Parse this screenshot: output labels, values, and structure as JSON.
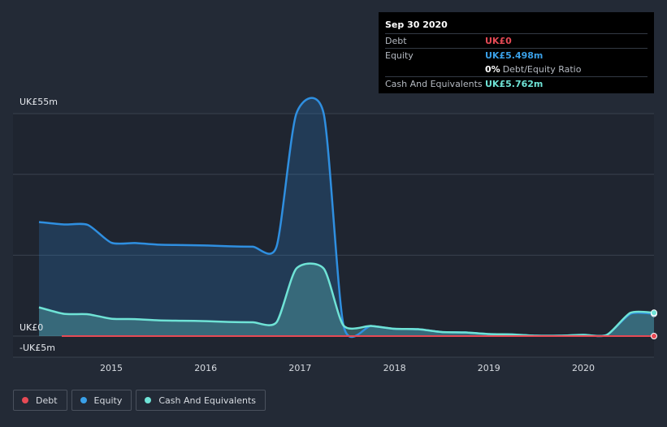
{
  "chart_data": {
    "type": "area",
    "y_axis_labels": [
      "UK£55m",
      "UK£0",
      "-UK£5m"
    ],
    "ylim": [
      -5,
      55
    ],
    "x_ticks": [
      {
        "label": "2015",
        "value": 2015
      },
      {
        "label": "2016",
        "value": 2016
      },
      {
        "label": "2017",
        "value": 2017
      },
      {
        "label": "2018",
        "value": 2018
      },
      {
        "label": "2019",
        "value": 2019
      },
      {
        "label": "2020",
        "value": 2020
      }
    ],
    "xlim": [
      2014.0,
      2020.75
    ],
    "grid": true,
    "series": [
      {
        "name": "Debt",
        "color": "#e64a55",
        "points": [
          [
            2014.25,
            0
          ],
          [
            2020.75,
            0
          ]
        ]
      },
      {
        "name": "Equity",
        "color": "#2f8fe0",
        "points": [
          [
            2014.25,
            28.2
          ],
          [
            2014.5,
            27.6
          ],
          [
            2014.75,
            27.5
          ],
          [
            2015.0,
            23.1
          ],
          [
            2015.25,
            23.0
          ],
          [
            2015.5,
            22.6
          ],
          [
            2015.75,
            22.5
          ],
          [
            2016.0,
            22.4
          ],
          [
            2016.25,
            22.2
          ],
          [
            2016.5,
            22.1
          ],
          [
            2016.75,
            22.1
          ],
          [
            2016.96,
            55
          ],
          [
            2017.25,
            55
          ],
          [
            2017.46,
            2.6
          ],
          [
            2017.75,
            2.5
          ],
          [
            2018.0,
            1.8
          ],
          [
            2018.25,
            1.7
          ],
          [
            2018.5,
            1.0
          ],
          [
            2018.75,
            0.9
          ],
          [
            2019.0,
            0.5
          ],
          [
            2019.25,
            0.4
          ],
          [
            2019.5,
            0.1
          ],
          [
            2019.75,
            0.1
          ],
          [
            2020.0,
            0.3
          ],
          [
            2020.25,
            0.3
          ],
          [
            2020.5,
            5.5
          ],
          [
            2020.75,
            5.5
          ]
        ]
      },
      {
        "name": "Cash And Equivalents",
        "color": "#6fe3d6",
        "points": [
          [
            2014.25,
            7.1
          ],
          [
            2014.5,
            5.5
          ],
          [
            2014.75,
            5.4
          ],
          [
            2015.0,
            4.3
          ],
          [
            2015.25,
            4.2
          ],
          [
            2015.5,
            3.9
          ],
          [
            2015.75,
            3.8
          ],
          [
            2016.0,
            3.7
          ],
          [
            2016.25,
            3.5
          ],
          [
            2016.5,
            3.4
          ],
          [
            2016.75,
            3.4
          ],
          [
            2016.96,
            16.7
          ],
          [
            2017.25,
            16.7
          ],
          [
            2017.46,
            2.6
          ],
          [
            2017.75,
            2.5
          ],
          [
            2018.0,
            1.8
          ],
          [
            2018.25,
            1.7
          ],
          [
            2018.5,
            1.0
          ],
          [
            2018.75,
            0.9
          ],
          [
            2019.0,
            0.5
          ],
          [
            2019.25,
            0.4
          ],
          [
            2019.5,
            0.1
          ],
          [
            2019.75,
            0.1
          ],
          [
            2020.0,
            0.3
          ],
          [
            2020.25,
            0.3
          ],
          [
            2020.5,
            5.76
          ],
          [
            2020.75,
            5.76
          ]
        ]
      }
    ]
  },
  "tooltip": {
    "date": "Sep 30 2020",
    "debt_label": "Debt",
    "debt_value": "UK£0",
    "equity_label": "Equity",
    "equity_value": "UK£5.498m",
    "ratio_pct": "0%",
    "ratio_text": "Debt/Equity Ratio",
    "cash_label": "Cash And Equivalents",
    "cash_value": "UK£5.762m"
  },
  "legend": {
    "items": [
      {
        "label": "Debt",
        "color": "#e64a55"
      },
      {
        "label": "Equity",
        "color": "#3aa0e8"
      },
      {
        "label": "Cash And Equivalents",
        "color": "#6fe3d6"
      }
    ]
  }
}
